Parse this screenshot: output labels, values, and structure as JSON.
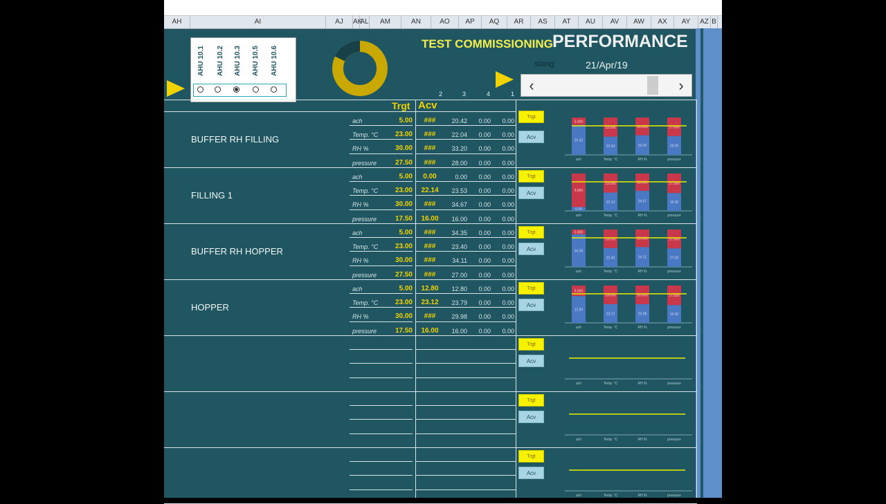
{
  "columns": [
    "AH",
    "AI",
    "AJ",
    "AK",
    "AL",
    "AM",
    "AN",
    "AO",
    "AP",
    "AQ",
    "AR",
    "AS",
    "AT",
    "AU",
    "AV",
    "AW",
    "AX",
    "AY",
    "AZ",
    "B"
  ],
  "ahu_options": [
    "AHU 10.1",
    "AHU 10.2",
    "AHU 10.3",
    "AHU 10.5",
    "AHU 10.6"
  ],
  "ahu_selected_index": 2,
  "header": {
    "title_left": "TEST COMMISSIONING",
    "title_right": "PERFORMANCE",
    "user": "siang",
    "date": "21/Apr/19"
  },
  "column_numbers": [
    "2",
    "3",
    "4",
    "1"
  ],
  "table_headers": {
    "target": "Trgt",
    "achieved": "Acv"
  },
  "buttons": {
    "target": "Trgt",
    "achieved": "Acv"
  },
  "parameters": [
    "ach",
    "Temp. °C",
    "RH %",
    "pressure"
  ],
  "colors": {
    "background": "#1f5662",
    "accent": "#f2d300",
    "target_bar": "#c8384a",
    "achieved_bar": "#4a78c2"
  },
  "zones": [
    {
      "name": "BUFFER RH FILLING",
      "rows": [
        {
          "target": "5.00",
          "achieved": "###",
          "v2": "20.42",
          "v3": "0.00",
          "v4": "0.00"
        },
        {
          "target": "23.00",
          "achieved": "###",
          "v2": "22.04",
          "v3": "0.00",
          "v4": "0.00"
        },
        {
          "target": "30.00",
          "achieved": "###",
          "v2": "33.20",
          "v3": "0.00",
          "v4": "0.00"
        },
        {
          "target": "27.50",
          "achieved": "###",
          "v2": "28.00",
          "v3": "0.00",
          "v4": "0.00"
        }
      ]
    },
    {
      "name": "FILLING 1",
      "rows": [
        {
          "target": "5.00",
          "achieved": "0.00",
          "v2": "0.00",
          "v3": "0.00",
          "v4": "0.00"
        },
        {
          "target": "23.00",
          "achieved": "22.14",
          "v2": "23.53",
          "v3": "0.00",
          "v4": "0.00"
        },
        {
          "target": "30.00",
          "achieved": "###",
          "v2": "34.67",
          "v3": "0.00",
          "v4": "0.00"
        },
        {
          "target": "17.50",
          "achieved": "16.00",
          "v2": "16.00",
          "v3": "0.00",
          "v4": "0.00"
        }
      ]
    },
    {
      "name": "BUFFER RH HOPPER",
      "rows": [
        {
          "target": "5.00",
          "achieved": "###",
          "v2": "34.35",
          "v3": "0.00",
          "v4": "0.00"
        },
        {
          "target": "23.00",
          "achieved": "###",
          "v2": "23.40",
          "v3": "0.00",
          "v4": "0.00"
        },
        {
          "target": "30.00",
          "achieved": "###",
          "v2": "34.11",
          "v3": "0.00",
          "v4": "0.00"
        },
        {
          "target": "27.50",
          "achieved": "###",
          "v2": "27.00",
          "v3": "0.00",
          "v4": "0.00"
        }
      ]
    },
    {
      "name": "HOPPER",
      "rows": [
        {
          "target": "5.00",
          "achieved": "12.80",
          "v2": "12.80",
          "v3": "0.00",
          "v4": "0.00"
        },
        {
          "target": "23.00",
          "achieved": "23.12",
          "v2": "23.79",
          "v3": "0.00",
          "v4": "0.00"
        },
        {
          "target": "30.00",
          "achieved": "###",
          "v2": "29.98",
          "v3": "0.00",
          "v4": "0.00"
        },
        {
          "target": "17.50",
          "achieved": "16.00",
          "v2": "16.00",
          "v3": "0.00",
          "v4": "0.00"
        }
      ]
    },
    {
      "name": "",
      "rows": []
    },
    {
      "name": "",
      "rows": []
    },
    {
      "name": "",
      "rows": []
    }
  ],
  "chart_data": [
    {
      "type": "bar",
      "categories": [
        "ach",
        "Temp. °C",
        "RH %",
        "pressure"
      ],
      "series": [
        {
          "values": [
            5.0,
            23.0,
            30.0,
            27.5
          ]
        },
        {
          "values": [
            20.42,
            22.04,
            33.2,
            28.0
          ]
        }
      ]
    },
    {
      "type": "bar",
      "categories": [
        "ach",
        "Temp. °C",
        "RH %",
        "pressure"
      ],
      "series": [
        {
          "values": [
            5.0,
            23.0,
            30.0,
            17.5
          ]
        },
        {
          "values": [
            0.0,
            22.14,
            34.67,
            16.0
          ]
        }
      ]
    },
    {
      "type": "bar",
      "categories": [
        "ach",
        "Temp. °C",
        "RH %",
        "pressure"
      ],
      "series": [
        {
          "values": [
            5.0,
            23.0,
            30.0,
            27.5
          ]
        },
        {
          "values": [
            34.35,
            23.4,
            34.11,
            27.0
          ]
        }
      ]
    },
    {
      "type": "bar",
      "categories": [
        "ach",
        "Temp. °C",
        "RH %",
        "pressure"
      ],
      "series": [
        {
          "values": [
            5.0,
            23.0,
            30.0,
            17.5
          ]
        },
        {
          "values": [
            12.8,
            23.12,
            29.98,
            16.0
          ]
        }
      ]
    },
    {
      "type": "bar",
      "categories": [
        "ach",
        "Temp. °C",
        "RH %",
        "pressure"
      ],
      "series": []
    },
    {
      "type": "bar",
      "categories": [
        "ach",
        "Temp. °C",
        "RH %",
        "pressure"
      ],
      "series": []
    },
    {
      "type": "bar",
      "categories": [
        "ach",
        "Temp. °C",
        "RH %",
        "pressure"
      ],
      "series": []
    }
  ]
}
